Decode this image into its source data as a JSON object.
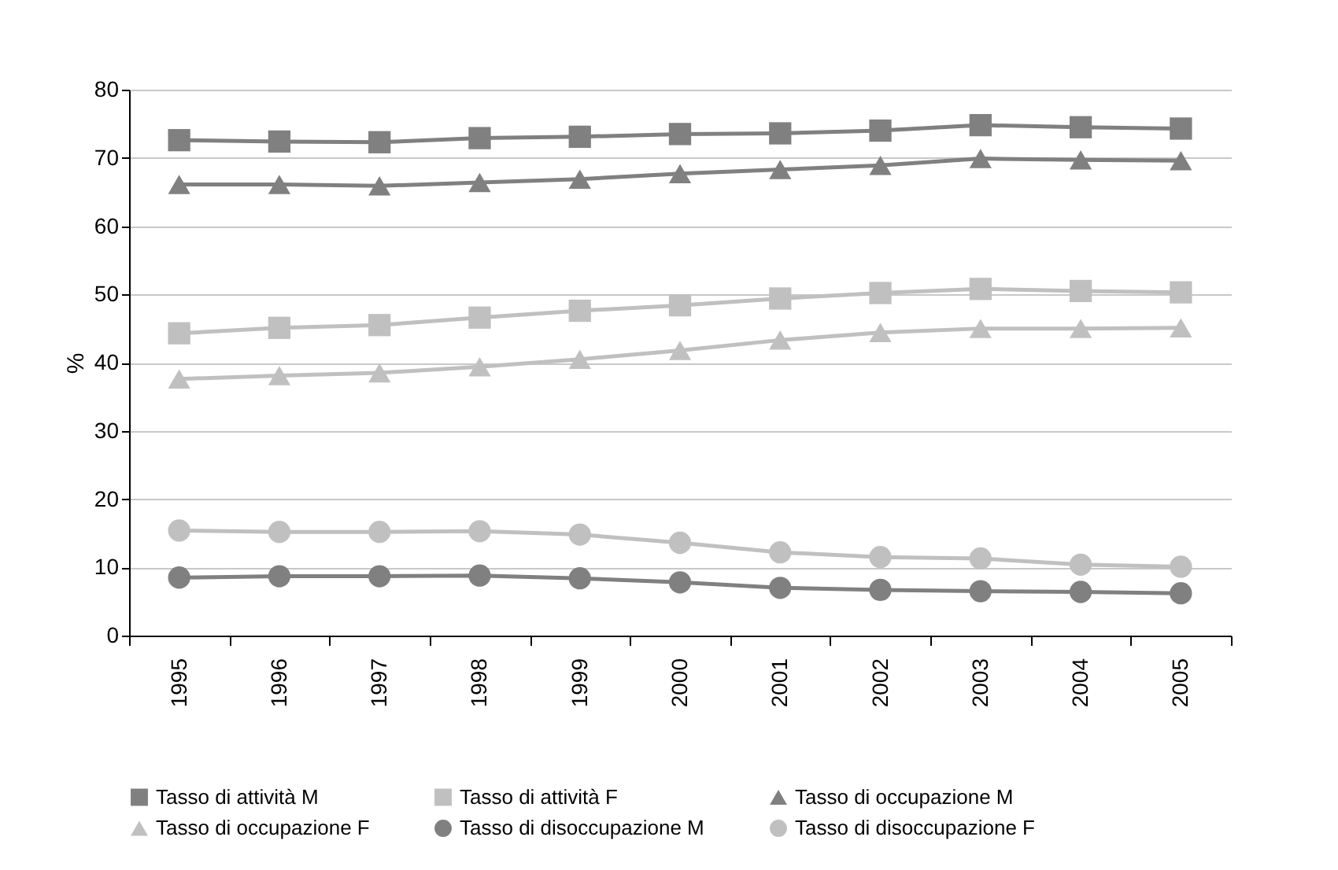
{
  "chart_data": {
    "type": "line",
    "ylabel": "%",
    "categories": [
      "1995",
      "1996",
      "1997",
      "1998",
      "1999",
      "2000",
      "2001",
      "2002",
      "2003",
      "2004",
      "2005"
    ],
    "ylim": [
      0,
      80
    ],
    "yticks": [
      0,
      10,
      20,
      30,
      40,
      50,
      60,
      70,
      80
    ],
    "grid": "y",
    "legend": "bottom",
    "series": [
      {
        "name": "Tasso di attività M",
        "color": "#808080",
        "marker": "square",
        "values": [
          72.6,
          72.4,
          72.3,
          72.9,
          73.1,
          73.5,
          73.6,
          74.0,
          74.8,
          74.5,
          74.3
        ]
      },
      {
        "name": "Tasso di attività F",
        "color": "#c0c0c0",
        "marker": "square",
        "values": [
          44.3,
          45.1,
          45.5,
          46.6,
          47.6,
          48.4,
          49.4,
          50.2,
          50.8,
          50.5,
          50.3
        ]
      },
      {
        "name": "Tasso di occupazione M",
        "color": "#808080",
        "marker": "triangle",
        "values": [
          66.1,
          66.1,
          65.9,
          66.4,
          66.9,
          67.7,
          68.3,
          68.9,
          69.9,
          69.7,
          69.6
        ]
      },
      {
        "name": "Tasso di occupazione F",
        "color": "#c0c0c0",
        "marker": "triangle",
        "values": [
          37.6,
          38.1,
          38.5,
          39.4,
          40.5,
          41.8,
          43.3,
          44.4,
          45.0,
          45.0,
          45.1
        ]
      },
      {
        "name": "Tasso di disoccupazione M",
        "color": "#808080",
        "marker": "circle",
        "values": [
          8.5,
          8.7,
          8.7,
          8.8,
          8.4,
          7.8,
          7.0,
          6.7,
          6.5,
          6.4,
          6.2
        ]
      },
      {
        "name": "Tasso di disoccupazione F",
        "color": "#c0c0c0",
        "marker": "circle",
        "values": [
          15.4,
          15.2,
          15.2,
          15.3,
          14.8,
          13.6,
          12.2,
          11.5,
          11.3,
          10.4,
          10.1
        ]
      }
    ]
  }
}
